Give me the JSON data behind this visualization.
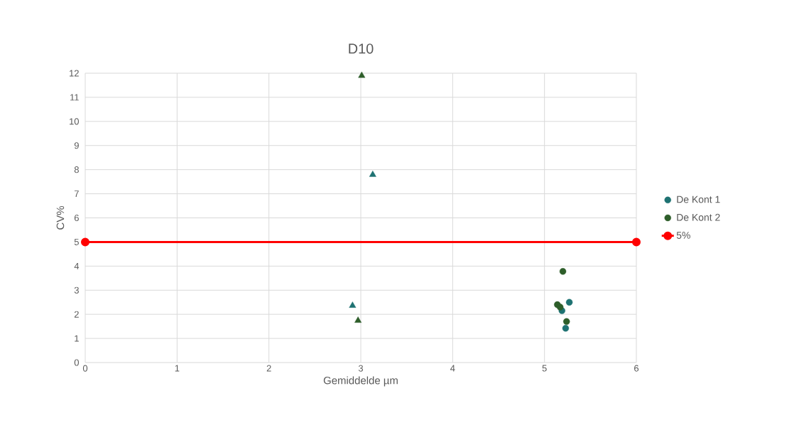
{
  "chart_data": {
    "type": "scatter",
    "title": "D10",
    "xlabel": "Gemiddelde µm",
    "ylabel": "CV%",
    "xlim": [
      0,
      6
    ],
    "xticks": [
      0,
      1,
      2,
      3,
      4,
      5,
      6
    ],
    "ylim": [
      0,
      12
    ],
    "yticks": [
      0,
      1,
      2,
      3,
      4,
      5,
      6,
      7,
      8,
      9,
      10,
      11,
      12
    ],
    "grid": true,
    "legend": "right",
    "series": [
      {
        "name": "De Kont 1",
        "color": "#1e7272",
        "marker": "circle",
        "x": [
          5.27,
          5.19,
          5.23
        ],
        "values": [
          2.5,
          2.15,
          1.42
        ]
      },
      {
        "name": "De Kont  2",
        "color": "#2e5e2a",
        "marker": "circle",
        "x": [
          5.2,
          5.14,
          5.17,
          5.24
        ],
        "values": [
          3.78,
          2.4,
          2.3,
          1.7
        ]
      },
      {
        "color": "#1e7272",
        "marker": "triangle",
        "x": [
          2.91,
          3.13
        ],
        "values": [
          2.36,
          7.79
        ]
      },
      {
        "color": "#2e5e2a",
        "marker": "triangle",
        "x": [
          3.01,
          2.97
        ],
        "values": [
          11.9,
          1.74
        ]
      },
      {
        "name": "5%",
        "type": "line",
        "color": "#ff0000",
        "marker": "circle",
        "x": [
          0,
          6
        ],
        "values": [
          5,
          5
        ]
      }
    ]
  }
}
